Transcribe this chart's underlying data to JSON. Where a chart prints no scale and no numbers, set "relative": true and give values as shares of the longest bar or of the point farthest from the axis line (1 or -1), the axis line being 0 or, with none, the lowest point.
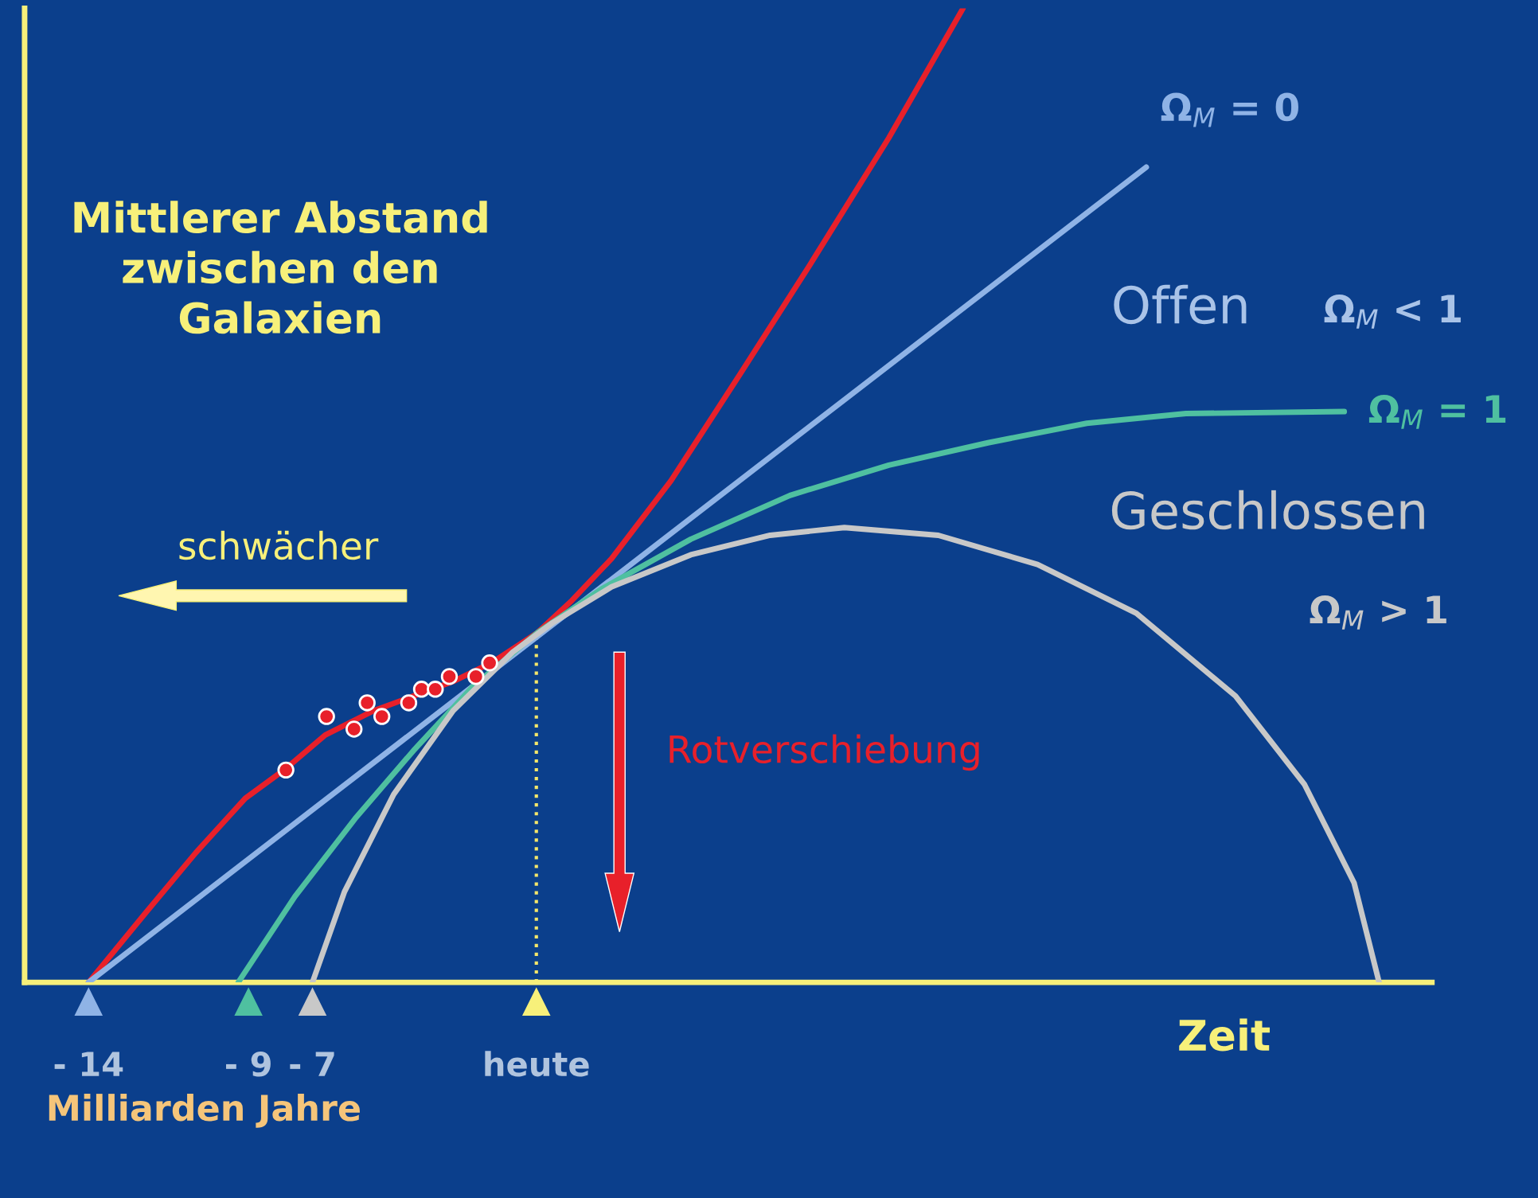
{
  "chart_data": {
    "type": "line",
    "relative": true,
    "ylabel": "Mittlerer Abstand\nzwischen den\nGalaxien",
    "xlabel": "Zeit",
    "xlim": [
      -16,
      28
    ],
    "xticks": [
      {
        "value": -14,
        "label": "- 14"
      },
      {
        "value": -9,
        "label": "- 9"
      },
      {
        "value": -7,
        "label": "- 7"
      },
      {
        "value": 0,
        "label": "heute"
      }
    ],
    "grid": false,
    "series": [
      {
        "color": "#e8202a",
        "x": [
          -14.0,
          -12.2,
          -10.65,
          -9.1,
          -7.85,
          -6.6,
          -5.08,
          -3.84,
          -2.6,
          -1.36,
          0.03,
          1.11,
          2.35,
          4.21,
          6.38,
          8.54,
          11.02,
          13.34
        ],
        "values": [
          0,
          0.072,
          0.133,
          0.189,
          0.219,
          0.254,
          0.279,
          0.294,
          0.309,
          0.329,
          0.359,
          0.392,
          0.435,
          0.515,
          0.625,
          0.736,
          0.867,
          1.0
        ]
      },
      {
        "name": "Ω$_{M}$ = 0",
        "color": "#8fb3e6",
        "x": [
          -14.0,
          19.07
        ],
        "values": [
          0,
          0.837
        ]
      },
      {
        "name": "Ω$_{M}$ = 1",
        "color": "#4fc0a0",
        "x": [
          -9.32,
          -7.55,
          -5.67,
          -3.84,
          -1.98,
          0.03,
          2.04,
          4.83,
          7.93,
          11.02,
          14.12,
          17.21,
          20.31,
          25.26
        ],
        "values": [
          0,
          0.088,
          0.168,
          0.238,
          0.304,
          0.359,
          0.404,
          0.455,
          0.5,
          0.531,
          0.554,
          0.574,
          0.584,
          0.586
        ]
      },
      {
        "name": "Ω$_{M}$ > 1",
        "color": "#c8c8c8",
        "x": [
          -7.0,
          -6.0,
          -4.46,
          -2.6,
          -0.74,
          0.5,
          2.35,
          4.83,
          7.31,
          9.63,
          12.57,
          15.67,
          18.76,
          21.86,
          24.02,
          25.57,
          26.35
        ],
        "values": [
          0,
          0.093,
          0.193,
          0.279,
          0.339,
          0.369,
          0.406,
          0.439,
          0.459,
          0.467,
          0.459,
          0.429,
          0.379,
          0.294,
          0.203,
          0.102,
          0
        ]
      },
      {
        "type": "scatter",
        "marker": "circle",
        "color": "#e8202a",
        "x": [
          -7.83,
          -6.56,
          -5.7,
          -5.29,
          -4.83,
          -3.99,
          -3.59,
          -3.16,
          -2.72,
          -1.89,
          -1.46
        ],
        "values": [
          0.218,
          0.273,
          0.26,
          0.287,
          0.273,
          0.287,
          0.301,
          0.301,
          0.314,
          0.314,
          0.328
        ]
      }
    ],
    "ref_lines": [
      {
        "axis": "x",
        "value": 0,
        "color": "#f5e66a",
        "line_style": "dotted"
      }
    ],
    "annotations": [
      "Offen",
      "Ω$_{M}$ < 1",
      "Geschlossen",
      "schwächer",
      "Rotverschiebung",
      "Milliarden Jahre"
    ]
  }
}
